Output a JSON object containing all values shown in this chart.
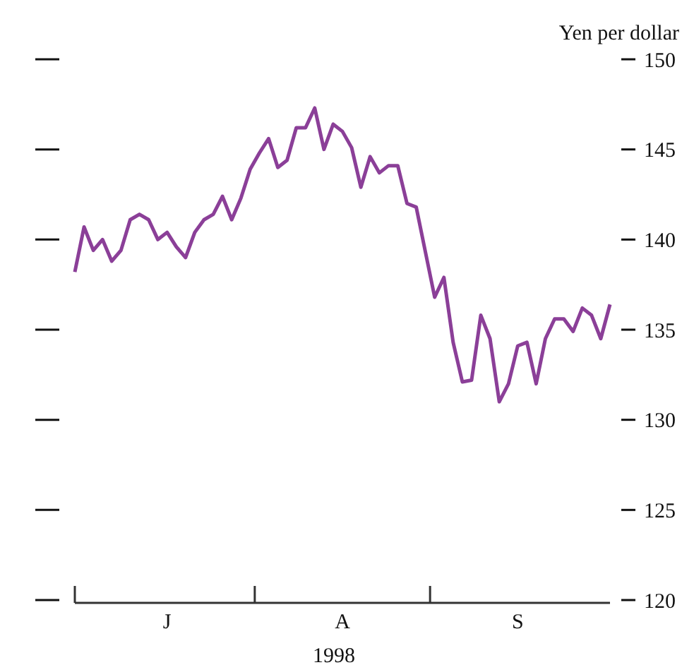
{
  "chart_data": {
    "type": "line",
    "ylabel": "Yen per dollar",
    "xlabel": "1998",
    "categories": [
      null,
      null,
      null,
      null,
      null,
      null,
      null,
      null,
      null,
      null,
      "J",
      null,
      null,
      null,
      null,
      null,
      null,
      null,
      null,
      null,
      null,
      null,
      null,
      null,
      null,
      null,
      null,
      null,
      null,
      "A",
      null,
      null,
      null,
      null,
      null,
      null,
      null,
      null,
      null,
      null,
      null,
      null,
      null,
      null,
      null,
      null,
      null,
      null,
      "S",
      null,
      null,
      null,
      null,
      null,
      null,
      null,
      null,
      null,
      null
    ],
    "series": [
      {
        "color": "#8b3f98",
        "values": [
          138.2,
          140.7,
          139.4,
          140.0,
          138.8,
          139.4,
          141.1,
          141.4,
          141.1,
          140.0,
          140.4,
          139.6,
          139.0,
          140.4,
          141.1,
          141.4,
          142.4,
          141.1,
          142.3,
          143.9,
          144.8,
          145.6,
          144.0,
          144.4,
          146.2,
          146.2,
          147.3,
          145.0,
          146.4,
          146.0,
          145.1,
          142.9,
          144.6,
          143.7,
          144.1,
          144.1,
          142.0,
          141.8,
          139.3,
          136.8,
          137.9,
          134.3,
          132.1,
          132.2,
          135.8,
          134.5,
          131.0,
          132.0,
          134.1,
          134.3,
          132.0,
          134.5,
          135.6,
          135.6,
          134.9,
          136.2,
          135.8,
          134.5,
          136.4
        ]
      }
    ],
    "ylim": [
      120,
      150
    ],
    "yticks": [
      120,
      125,
      130,
      135,
      140,
      145,
      150
    ],
    "marker": "none",
    "line_style": "solid"
  }
}
